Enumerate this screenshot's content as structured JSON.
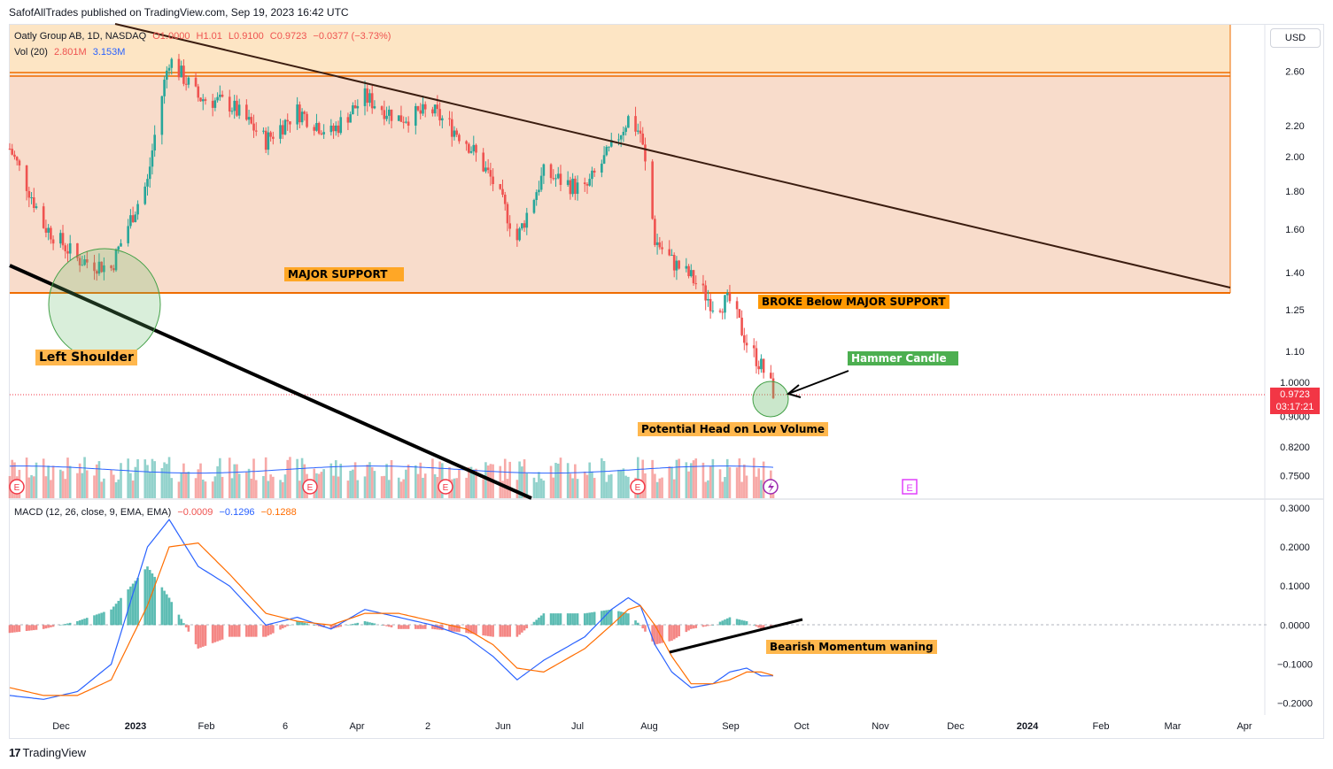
{
  "header": {
    "publisher": "SafofAllTrades published on TradingView.com, Sep 19, 2023 16:42 UTC"
  },
  "symbol": {
    "name": "Oatly Group AB, 1D, NASDAQ",
    "open": "O1.0000",
    "high": "H1.01",
    "low": "L0.9100",
    "close": "C0.9723",
    "change": "−0.0377 (−3.73%)"
  },
  "volume": {
    "label": "Vol (20)",
    "value": "2.801M",
    "ma": "3.153M"
  },
  "macd": {
    "label": "MACD (12, 26, close, 9, EMA, EMA)",
    "hist": "−0.0009",
    "macd": "−0.1296",
    "signal": "−0.1288"
  },
  "currency_button": "USD",
  "price_tag": {
    "price": "0.9723",
    "countdown": "03:17:21"
  },
  "annotations": {
    "major_support": "MAJOR SUPPORT",
    "broke_below": "BROKE Below MAJOR SUPPORT",
    "hammer": "Hammer Candle",
    "left_shoulder": "Left Shoulder",
    "potential_head": "Potential Head on  Low Volume",
    "bearish_momentum": "Bearish Momentum waning"
  },
  "earnings_marker": "E",
  "brand": {
    "logo": "17",
    "name": "TradingView"
  },
  "colors": {
    "up": "#26a69a",
    "down": "#ef5350",
    "zone": "#f5c6a8",
    "zone_top": "#fde5c4",
    "support_line": "#ef6c00",
    "macd_line": "#2962ff",
    "signal_line": "#ff6d00"
  },
  "chart_data": [
    {
      "type": "candlestick",
      "title": "Oatly Group AB, 1D, NASDAQ",
      "x_ticks": [
        "Dec",
        "2023",
        "Feb",
        "6",
        "Apr",
        "2",
        "Jun",
        "Jul",
        "Aug",
        "Sep",
        "Oct",
        "Nov",
        "Dec",
        "2024",
        "Feb",
        "Mar",
        "Apr"
      ],
      "y_ticks": [
        "2.60",
        "2.20",
        "2.00",
        "1.80",
        "1.60",
        "1.40",
        "1.25",
        "1.10",
        "1.0000",
        "0.9000",
        "0.8200",
        "0.7500"
      ],
      "y_scale": "log",
      "ylim": [
        0.7,
        3.0
      ],
      "close_path_x": [
        "2022-11-07",
        "2022-11-21",
        "2022-12-05",
        "2022-12-19",
        "2023-01-03",
        "2023-01-12",
        "2023-01-24",
        "2023-02-06",
        "2023-02-21",
        "2023-03-06",
        "2023-03-20",
        "2023-04-03",
        "2023-04-17",
        "2023-05-01",
        "2023-05-15",
        "2023-05-26",
        "2023-06-05",
        "2023-06-16",
        "2023-07-03",
        "2023-07-14",
        "2023-07-21",
        "2023-07-26",
        "2023-08-01",
        "2023-08-08",
        "2023-08-16",
        "2023-08-25",
        "2023-09-01",
        "2023-09-08",
        "2023-09-14",
        "2023-09-19"
      ],
      "close_path_y": [
        2.05,
        1.62,
        1.46,
        1.42,
        1.85,
        2.7,
        2.4,
        2.35,
        2.1,
        2.3,
        2.15,
        2.4,
        2.25,
        2.3,
        2.1,
        1.85,
        1.55,
        1.9,
        1.8,
        2.05,
        2.25,
        2.15,
        1.55,
        1.45,
        1.38,
        1.27,
        1.28,
        1.13,
        1.05,
        0.9723
      ],
      "annotations": [
        "MAJOR SUPPORT",
        "BROKE Below MAJOR SUPPORT",
        "Hammer Candle",
        "Left Shoulder",
        "Potential Head on  Low Volume"
      ],
      "support_zone": [
        1.36,
        2.75
      ],
      "current_price": 0.9723
    },
    {
      "type": "line",
      "title": "MACD (12, 26, close, 9, EMA, EMA)",
      "y_ticks": [
        "0.3000",
        "0.2000",
        "0.1000",
        "0.0000",
        "−0.1000",
        "−0.2000"
      ],
      "ylim": [
        -0.23,
        0.32
      ],
      "x": [
        "2022-11-07",
        "2022-11-21",
        "2022-12-05",
        "2022-12-19",
        "2023-01-03",
        "2023-01-12",
        "2023-01-24",
        "2023-02-06",
        "2023-02-21",
        "2023-03-06",
        "2023-03-20",
        "2023-04-03",
        "2023-04-17",
        "2023-05-01",
        "2023-05-15",
        "2023-05-26",
        "2023-06-05",
        "2023-06-16",
        "2023-07-03",
        "2023-07-14",
        "2023-07-21",
        "2023-07-26",
        "2023-08-01",
        "2023-08-08",
        "2023-08-16",
        "2023-08-25",
        "2023-09-01",
        "2023-09-08",
        "2023-09-14",
        "2023-09-19"
      ],
      "series": [
        {
          "name": "MACD",
          "values": [
            -0.18,
            -0.19,
            -0.17,
            -0.1,
            0.2,
            0.27,
            0.15,
            0.1,
            0.0,
            0.02,
            -0.01,
            0.04,
            0.02,
            0.0,
            -0.03,
            -0.08,
            -0.14,
            -0.09,
            -0.03,
            0.04,
            0.07,
            0.05,
            -0.05,
            -0.12,
            -0.16,
            -0.15,
            -0.12,
            -0.11,
            -0.13,
            -0.1296
          ]
        },
        {
          "name": "Signal",
          "values": [
            -0.16,
            -0.18,
            -0.18,
            -0.14,
            0.05,
            0.2,
            0.21,
            0.13,
            0.03,
            0.01,
            0.0,
            0.03,
            0.03,
            0.01,
            -0.01,
            -0.05,
            -0.11,
            -0.12,
            -0.06,
            0.0,
            0.04,
            0.05,
            0.0,
            -0.08,
            -0.15,
            -0.15,
            -0.14,
            -0.12,
            -0.12,
            -0.1288
          ]
        }
      ],
      "annotations": [
        "Bearish Momentum waning"
      ]
    }
  ]
}
